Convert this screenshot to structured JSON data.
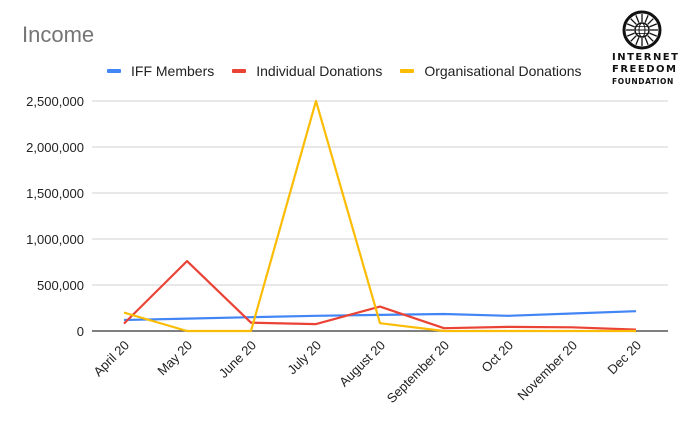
{
  "header": {
    "title": "Income"
  },
  "logo": {
    "line1": "INTERNET",
    "line2": "FREEDOM",
    "line3": "FOUNDATION"
  },
  "legend": [
    {
      "label": "IFF Members",
      "color": "#4285f4"
    },
    {
      "label": "Individual Donations",
      "color": "#ea4335"
    },
    {
      "label": "Organisational Donations",
      "color": "#fbbc04"
    }
  ],
  "chart_data": {
    "type": "line",
    "title": "Income",
    "xlabel": "",
    "ylabel": "",
    "categories": [
      "April 20",
      "May 20",
      "June 20",
      "July 20",
      "August 20",
      "September 20",
      "Oct 20",
      "November 20",
      "Dec 20"
    ],
    "series": [
      {
        "name": "IFF Members",
        "color": "#4285f4",
        "values": [
          120000,
          135000,
          150000,
          165000,
          175000,
          185000,
          165000,
          190000,
          215000
        ]
      },
      {
        "name": "Individual Donations",
        "color": "#ea4335",
        "values": [
          80000,
          760000,
          90000,
          75000,
          265000,
          30000,
          45000,
          40000,
          15000
        ]
      },
      {
        "name": "Organisational Donations",
        "color": "#fbbc04",
        "values": [
          200000,
          0,
          0,
          2500000,
          85000,
          0,
          0,
          0,
          0
        ]
      }
    ],
    "yticks": [
      "0",
      "500,000",
      "1,000,000",
      "1,500,000",
      "2,000,000",
      "2,500,000"
    ],
    "ylim": [
      0,
      2500000
    ],
    "grid": true,
    "legend_position": "top"
  }
}
